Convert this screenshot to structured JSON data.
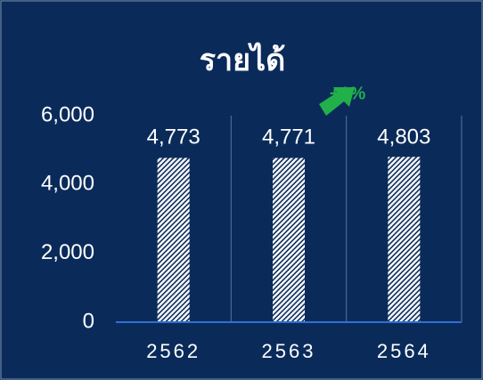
{
  "chart_data": {
    "type": "bar",
    "title": "รายได้",
    "categories": [
      "2562",
      "2563",
      "2564"
    ],
    "values": [
      4773,
      4771,
      4803
    ],
    "value_labels": [
      "4,773",
      "4,771",
      "4,803"
    ],
    "color": "#ffffff",
    "ylim": [
      0,
      6000
    ],
    "yticks": [
      0,
      {
        "value": 2000,
        "label": "2,000"
      },
      {
        "value": 4000,
        "label": "4,000"
      },
      {
        "value": 6000,
        "label": "6,000"
      }
    ],
    "annotation": "+1%",
    "annotation_color": "#22b04b"
  }
}
